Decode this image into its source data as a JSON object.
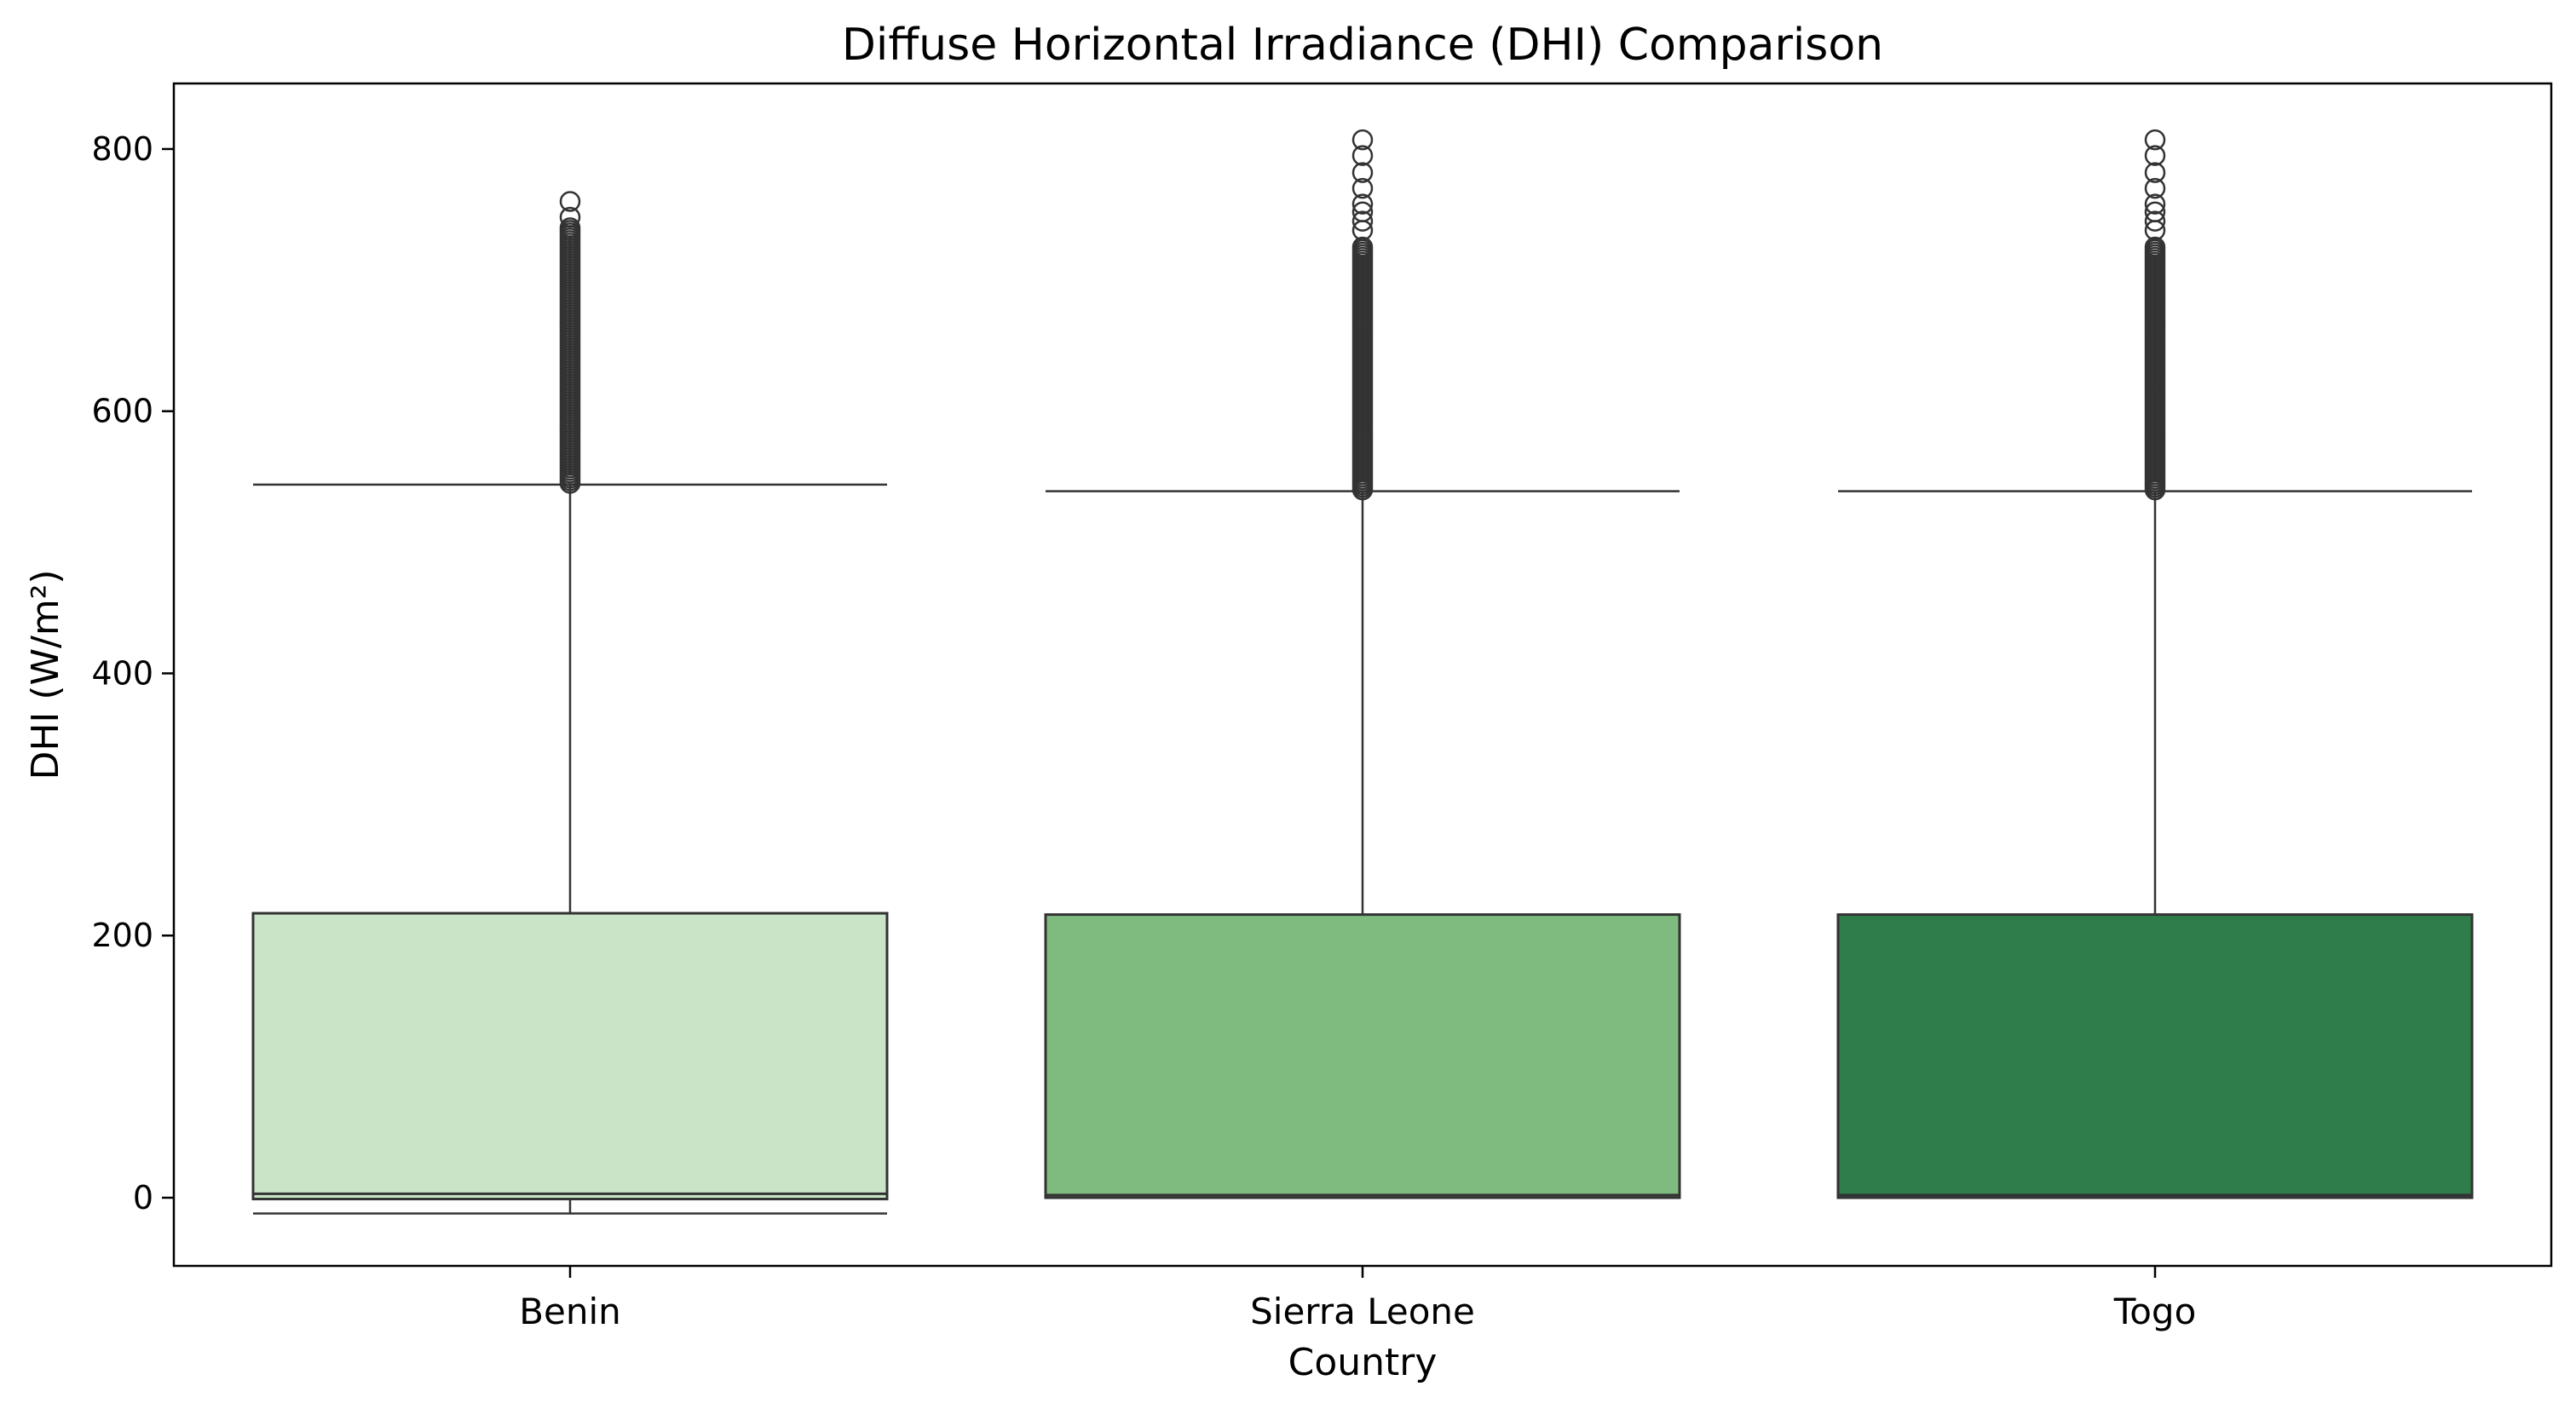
{
  "chart_data": {
    "type": "box",
    "title": "Diffuse Horizontal Irradiance (DHI) Comparison",
    "xlabel": "Country",
    "ylabel": "DHI (W/m²)",
    "ylim": [
      -52,
      850
    ],
    "yticks": [
      0,
      200,
      400,
      600,
      800
    ],
    "grid": false,
    "categories": [
      "Benin",
      "Sierra Leone",
      "Togo"
    ],
    "boxes": [
      {
        "category": "Benin",
        "color": "#c9e4c7",
        "whisker_low": -12,
        "q1": -1,
        "median": 3,
        "q3": 217,
        "whisker_high": 544,
        "outliers_range": [
          545,
          740
        ],
        "outliers_top": [
          748,
          760
        ]
      },
      {
        "category": "Sierra Leone",
        "color": "#7fbb7f",
        "whisker_low": 0,
        "q1": 0,
        "median": 2,
        "q3": 216,
        "whisker_high": 539,
        "outliers_range": [
          540,
          727
        ],
        "outliers_top": [
          738,
          745,
          752,
          758,
          770,
          782,
          795,
          807
        ]
      },
      {
        "category": "Togo",
        "color": "#2e7d4b",
        "whisker_low": 0,
        "q1": 0,
        "median": 2,
        "q3": 216,
        "whisker_high": 539,
        "outliers_range": [
          540,
          727
        ],
        "outliers_top": [
          738,
          745,
          752,
          758,
          770,
          782,
          795,
          807
        ]
      }
    ]
  }
}
